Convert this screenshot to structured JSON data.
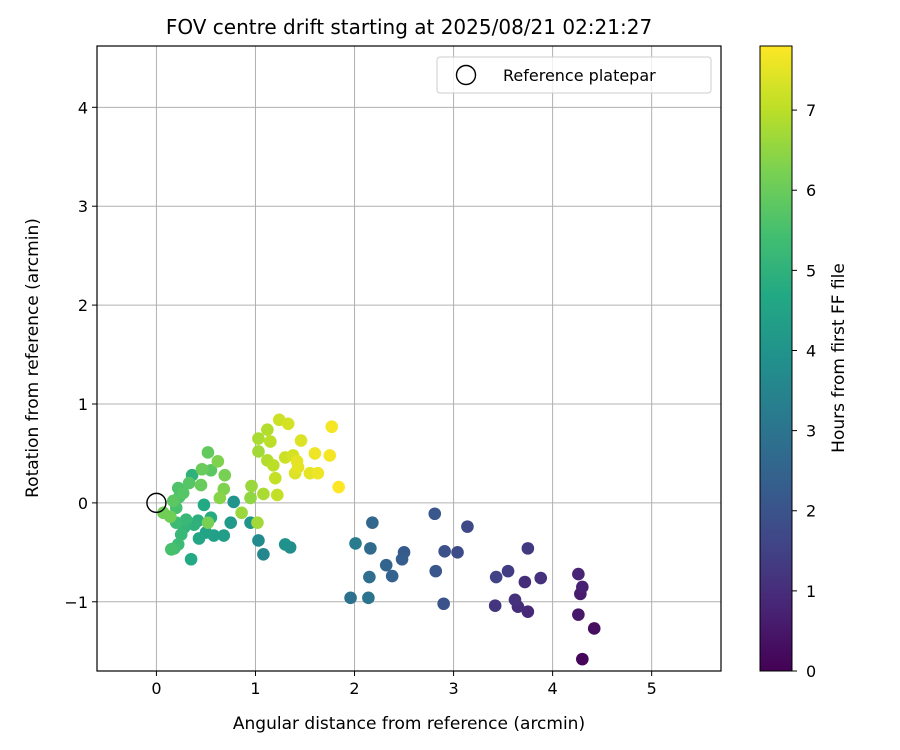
{
  "chart_data": {
    "type": "scatter",
    "title": "FOV centre drift starting at 2025/08/21 02:21:27",
    "xlabel": "Angular distance from reference (arcmin)",
    "ylabel": "Rotation from reference (arcmin)",
    "xlim": [
      -0.6,
      5.7
    ],
    "ylim": [
      -1.7,
      4.62
    ],
    "xticks": [
      0,
      1,
      2,
      3,
      4,
      5
    ],
    "yticks": [
      -1,
      0,
      1,
      2,
      3,
      4
    ],
    "xtick_labels": [
      "0",
      "1",
      "2",
      "3",
      "4",
      "5"
    ],
    "ytick_labels": [
      "−1",
      "0",
      "1",
      "2",
      "3",
      "4"
    ],
    "grid": true,
    "legend": {
      "position": "top-right",
      "entries": [
        "Reference platepar"
      ]
    },
    "reference_point": {
      "x": 0,
      "y": 0
    },
    "colorbar": {
      "label": "Hours from first FF file",
      "colormap": "viridis",
      "range": [
        0,
        7.8
      ],
      "ticks": [
        0,
        1,
        2,
        3,
        4,
        5,
        6,
        7
      ],
      "tick_labels": [
        "0",
        "1",
        "2",
        "3",
        "4",
        "5",
        "6",
        "7"
      ]
    },
    "points": [
      {
        "x": 4.3,
        "y": -1.58,
        "c": 0.1
      },
      {
        "x": 4.42,
        "y": -1.27,
        "c": 0.3
      },
      {
        "x": 4.26,
        "y": -1.13,
        "c": 0.5
      },
      {
        "x": 4.28,
        "y": -0.92,
        "c": 0.6
      },
      {
        "x": 4.3,
        "y": -0.85,
        "c": 0.7
      },
      {
        "x": 4.26,
        "y": -0.72,
        "c": 0.8
      },
      {
        "x": 3.75,
        "y": -1.1,
        "c": 0.9
      },
      {
        "x": 3.65,
        "y": -1.05,
        "c": 1.0
      },
      {
        "x": 3.62,
        "y": -0.98,
        "c": 1.1
      },
      {
        "x": 3.42,
        "y": -1.04,
        "c": 1.2
      },
      {
        "x": 3.72,
        "y": -0.8,
        "c": 1.0
      },
      {
        "x": 3.88,
        "y": -0.76,
        "c": 1.1
      },
      {
        "x": 3.75,
        "y": -0.46,
        "c": 1.3
      },
      {
        "x": 3.55,
        "y": -0.69,
        "c": 1.4
      },
      {
        "x": 3.43,
        "y": -0.75,
        "c": 1.5
      },
      {
        "x": 3.14,
        "y": -0.24,
        "c": 1.7
      },
      {
        "x": 3.04,
        "y": -0.5,
        "c": 1.8
      },
      {
        "x": 2.91,
        "y": -0.49,
        "c": 1.9
      },
      {
        "x": 2.9,
        "y": -1.02,
        "c": 2.0
      },
      {
        "x": 2.81,
        "y": -0.11,
        "c": 2.1
      },
      {
        "x": 2.82,
        "y": -0.69,
        "c": 2.1
      },
      {
        "x": 2.5,
        "y": -0.5,
        "c": 2.2
      },
      {
        "x": 2.48,
        "y": -0.57,
        "c": 2.3
      },
      {
        "x": 2.38,
        "y": -0.74,
        "c": 2.4
      },
      {
        "x": 2.32,
        "y": -0.63,
        "c": 2.5
      },
      {
        "x": 2.18,
        "y": -0.2,
        "c": 2.6
      },
      {
        "x": 2.16,
        "y": -0.46,
        "c": 2.7
      },
      {
        "x": 2.15,
        "y": -0.75,
        "c": 2.8
      },
      {
        "x": 1.96,
        "y": -0.96,
        "c": 2.9
      },
      {
        "x": 2.14,
        "y": -0.96,
        "c": 3.0
      },
      {
        "x": 2.01,
        "y": -0.41,
        "c": 3.2
      },
      {
        "x": 1.08,
        "y": -0.52,
        "c": 3.6
      },
      {
        "x": 1.03,
        "y": -0.38,
        "c": 3.7
      },
      {
        "x": 1.35,
        "y": -0.45,
        "c": 3.8
      },
      {
        "x": 1.3,
        "y": -0.42,
        "c": 3.9
      },
      {
        "x": 0.78,
        "y": 0.01,
        "c": 4.0
      },
      {
        "x": 0.95,
        "y": -0.2,
        "c": 4.0
      },
      {
        "x": 0.75,
        "y": -0.2,
        "c": 4.2
      },
      {
        "x": 0.68,
        "y": -0.33,
        "c": 4.3
      },
      {
        "x": 0.58,
        "y": -0.33,
        "c": 4.4
      },
      {
        "x": 0.5,
        "y": -0.3,
        "c": 4.5
      },
      {
        "x": 0.43,
        "y": -0.36,
        "c": 4.6
      },
      {
        "x": 0.35,
        "y": -0.57,
        "c": 4.7
      },
      {
        "x": 0.48,
        "y": -0.02,
        "c": 4.7
      },
      {
        "x": 0.55,
        "y": -0.15,
        "c": 4.8
      },
      {
        "x": 0.42,
        "y": -0.18,
        "c": 4.9
      },
      {
        "x": 0.38,
        "y": -0.22,
        "c": 5.0
      },
      {
        "x": 0.36,
        "y": 0.28,
        "c": 5.0
      },
      {
        "x": 0.28,
        "y": -0.25,
        "c": 5.1
      },
      {
        "x": 0.25,
        "y": -0.32,
        "c": 5.2
      },
      {
        "x": 0.3,
        "y": -0.17,
        "c": 5.2
      },
      {
        "x": 0.22,
        "y": -0.42,
        "c": 5.3
      },
      {
        "x": 0.2,
        "y": -0.2,
        "c": 5.3
      },
      {
        "x": 0.18,
        "y": -0.46,
        "c": 5.4
      },
      {
        "x": 0.15,
        "y": -0.47,
        "c": 5.5
      },
      {
        "x": 0.2,
        "y": -0.05,
        "c": 5.5
      },
      {
        "x": 0.23,
        "y": 0.06,
        "c": 5.6
      },
      {
        "x": 0.22,
        "y": 0.15,
        "c": 5.6
      },
      {
        "x": 0.27,
        "y": 0.1,
        "c": 5.7
      },
      {
        "x": 0.33,
        "y": 0.2,
        "c": 5.7
      },
      {
        "x": 0.17,
        "y": 0.02,
        "c": 5.8
      },
      {
        "x": 0.55,
        "y": 0.33,
        "c": 5.8
      },
      {
        "x": 0.52,
        "y": 0.51,
        "c": 5.9
      },
      {
        "x": 0.46,
        "y": 0.34,
        "c": 6.0
      },
      {
        "x": 0.45,
        "y": 0.18,
        "c": 6.0
      },
      {
        "x": 0.07,
        "y": -0.1,
        "c": 6.1
      },
      {
        "x": 0.14,
        "y": -0.14,
        "c": 6.1
      },
      {
        "x": 0.52,
        "y": -0.2,
        "c": 6.2
      },
      {
        "x": 0.69,
        "y": 0.28,
        "c": 6.2
      },
      {
        "x": 0.68,
        "y": 0.14,
        "c": 6.3
      },
      {
        "x": 0.62,
        "y": 0.42,
        "c": 6.3
      },
      {
        "x": 0.64,
        "y": 0.05,
        "c": 6.4
      },
      {
        "x": 0.95,
        "y": 0.05,
        "c": 6.5
      },
      {
        "x": 0.96,
        "y": 0.17,
        "c": 6.6
      },
      {
        "x": 0.86,
        "y": -0.1,
        "c": 6.6
      },
      {
        "x": 1.02,
        "y": -0.2,
        "c": 6.7
      },
      {
        "x": 1.03,
        "y": 0.52,
        "c": 6.7
      },
      {
        "x": 1.03,
        "y": 0.65,
        "c": 6.8
      },
      {
        "x": 1.08,
        "y": 0.09,
        "c": 6.8
      },
      {
        "x": 1.12,
        "y": 0.74,
        "c": 6.9
      },
      {
        "x": 1.12,
        "y": 0.43,
        "c": 6.9
      },
      {
        "x": 1.15,
        "y": 0.62,
        "c": 7.0
      },
      {
        "x": 1.18,
        "y": 0.38,
        "c": 7.0
      },
      {
        "x": 1.2,
        "y": 0.25,
        "c": 7.1
      },
      {
        "x": 1.22,
        "y": 0.08,
        "c": 7.1
      },
      {
        "x": 1.24,
        "y": 0.84,
        "c": 7.2
      },
      {
        "x": 1.3,
        "y": 0.46,
        "c": 7.2
      },
      {
        "x": 1.33,
        "y": 0.8,
        "c": 7.3
      },
      {
        "x": 1.38,
        "y": 0.48,
        "c": 7.3
      },
      {
        "x": 1.4,
        "y": 0.3,
        "c": 7.4
      },
      {
        "x": 1.46,
        "y": 0.63,
        "c": 7.4
      },
      {
        "x": 1.42,
        "y": 0.42,
        "c": 7.5
      },
      {
        "x": 1.43,
        "y": 0.36,
        "c": 7.5
      },
      {
        "x": 1.55,
        "y": 0.3,
        "c": 7.5
      },
      {
        "x": 1.6,
        "y": 0.5,
        "c": 7.6
      },
      {
        "x": 1.63,
        "y": 0.3,
        "c": 7.6
      },
      {
        "x": 1.75,
        "y": 0.48,
        "c": 7.7
      },
      {
        "x": 1.77,
        "y": 0.77,
        "c": 7.7
      },
      {
        "x": 1.84,
        "y": 0.16,
        "c": 7.8
      }
    ]
  }
}
